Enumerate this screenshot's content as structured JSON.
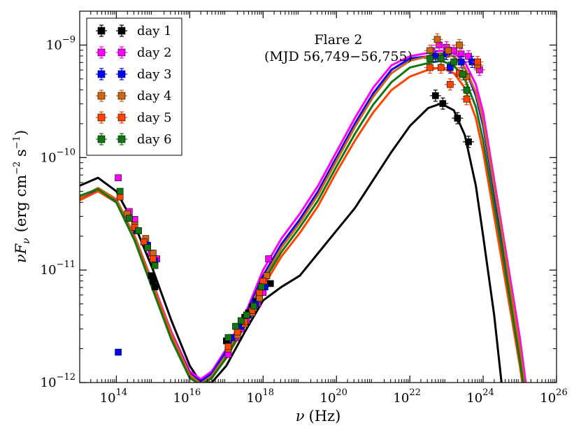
{
  "chart_data": {
    "type": "scatter",
    "annotation": {
      "line1": "Flare 2",
      "line2": "(MJD 56,749−56,755)"
    },
    "xlabel": {
      "main": "ν",
      "unit": "(Hz)"
    },
    "ylabel": {
      "prefix": "νF",
      "sub": "ν",
      "unit_pre": "(erg cm",
      "exp1": "−2",
      "unit_mid": " s",
      "exp2": "−1",
      "unit_post": ")"
    },
    "x_scale": "log",
    "y_scale": "log",
    "xlim": [
      10000000000000.0,
      1e+26
    ],
    "ylim": [
      1e-12,
      2e-09
    ],
    "grid": false,
    "legend_placement": "top-left",
    "x_ticks": [
      {
        "value": 100000000000000.0,
        "base": "10",
        "exp": "14"
      },
      {
        "value": 1e+16,
        "base": "10",
        "exp": "16"
      },
      {
        "value": 1e+18,
        "base": "10",
        "exp": "18"
      },
      {
        "value": 1e+20,
        "base": "10",
        "exp": "20"
      },
      {
        "value": 1e+22,
        "base": "10",
        "exp": "22"
      },
      {
        "value": 1e+24,
        "base": "10",
        "exp": "24"
      },
      {
        "value": 1e+26,
        "base": "10",
        "exp": "26"
      }
    ],
    "y_ticks": [
      {
        "value": 1e-12,
        "base": "10",
        "exp": "−12"
      },
      {
        "value": 1e-11,
        "base": "10",
        "exp": "−11"
      },
      {
        "value": 1e-10,
        "base": "10",
        "exp": "−10"
      },
      {
        "value": 1e-09,
        "base": "10",
        "exp": "−9"
      }
    ],
    "series": [
      {
        "name": "day 1",
        "color": "#000000",
        "model": [
          [
            13,
            -10.25
          ],
          [
            13.5,
            -10.18
          ],
          [
            14,
            -10.3
          ],
          [
            14.5,
            -10.6
          ],
          [
            15,
            -11.0
          ],
          [
            15.5,
            -11.45
          ],
          [
            16,
            -11.85
          ],
          [
            16.3,
            -12.0
          ],
          [
            16.6,
            -12.0
          ],
          [
            17,
            -11.85
          ],
          [
            17.5,
            -11.55
          ],
          [
            18,
            -11.27
          ],
          [
            18.5,
            -11.15
          ],
          [
            19,
            -11.05
          ],
          [
            19.5,
            -10.85
          ],
          [
            20,
            -10.65
          ],
          [
            20.5,
            -10.45
          ],
          [
            21,
            -10.2
          ],
          [
            21.5,
            -9.95
          ],
          [
            22,
            -9.72
          ],
          [
            22.5,
            -9.56
          ],
          [
            22.85,
            -9.52
          ],
          [
            23.2,
            -9.58
          ],
          [
            23.5,
            -9.8
          ],
          [
            23.8,
            -10.25
          ],
          [
            24,
            -10.7
          ],
          [
            24.3,
            -11.4
          ],
          [
            24.6,
            -12.3
          ]
        ],
        "points": [
          [
            14.95,
            -11.05
          ],
          [
            15.0,
            -11.1
          ],
          [
            15.05,
            -11.15
          ],
          [
            17.0,
            -11.63
          ],
          [
            17.3,
            -11.52
          ],
          [
            17.4,
            -11.48
          ],
          [
            17.5,
            -11.42
          ],
          [
            17.6,
            -11.38
          ],
          [
            17.7,
            -11.33
          ],
          [
            17.8,
            -11.28
          ],
          [
            17.9,
            -11.22
          ],
          [
            18.2,
            -11.12
          ],
          [
            22.7,
            -9.45
          ],
          [
            22.9,
            -9.52
          ],
          [
            23.3,
            -9.65
          ],
          [
            23.6,
            -9.86
          ]
        ]
      },
      {
        "name": "day 2",
        "color": "#ff00ff",
        "model": [
          [
            13,
            -10.38
          ],
          [
            13.5,
            -10.28
          ],
          [
            14,
            -10.38
          ],
          [
            14.5,
            -10.7
          ],
          [
            15,
            -11.12
          ],
          [
            15.5,
            -11.55
          ],
          [
            16,
            -11.9
          ],
          [
            16.3,
            -11.97
          ],
          [
            16.6,
            -11.9
          ],
          [
            17,
            -11.7
          ],
          [
            17.5,
            -11.4
          ],
          [
            18,
            -11.0
          ],
          [
            18.5,
            -10.72
          ],
          [
            19,
            -10.5
          ],
          [
            19.5,
            -10.25
          ],
          [
            20,
            -9.95
          ],
          [
            20.5,
            -9.65
          ],
          [
            21,
            -9.38
          ],
          [
            21.5,
            -9.18
          ],
          [
            22,
            -9.1
          ],
          [
            22.5,
            -9.07
          ],
          [
            22.85,
            -9.05
          ],
          [
            23.2,
            -9.07
          ],
          [
            23.5,
            -9.15
          ],
          [
            23.8,
            -9.35
          ],
          [
            24,
            -9.6
          ],
          [
            24.5,
            -10.6
          ],
          [
            25,
            -11.6
          ],
          [
            25.2,
            -12.1
          ]
        ],
        "points": [
          [
            14.05,
            -10.18
          ],
          [
            14.35,
            -10.48
          ],
          [
            14.5,
            -10.55
          ],
          [
            14.6,
            -10.65
          ],
          [
            14.75,
            -10.75
          ],
          [
            14.95,
            -10.85
          ],
          [
            15.1,
            -10.9
          ],
          [
            17.05,
            -11.75
          ],
          [
            17.25,
            -11.6
          ],
          [
            17.4,
            -11.52
          ],
          [
            17.55,
            -11.45
          ],
          [
            17.7,
            -11.38
          ],
          [
            17.85,
            -11.3
          ],
          [
            18.0,
            -11.2
          ],
          [
            18.15,
            -10.9
          ],
          [
            22.6,
            -9.05
          ],
          [
            22.8,
            -9.0
          ],
          [
            23.0,
            -9.02
          ],
          [
            23.2,
            -9.05
          ],
          [
            23.4,
            -9.08
          ],
          [
            23.6,
            -9.1
          ],
          [
            23.9,
            -9.22
          ]
        ]
      },
      {
        "name": "day 3",
        "color": "#0000ff",
        "model": [
          [
            13,
            -10.37
          ],
          [
            13.5,
            -10.28
          ],
          [
            14,
            -10.38
          ],
          [
            14.5,
            -10.7
          ],
          [
            15,
            -11.13
          ],
          [
            15.5,
            -11.57
          ],
          [
            16,
            -11.92
          ],
          [
            16.3,
            -11.99
          ],
          [
            16.6,
            -11.92
          ],
          [
            17,
            -11.72
          ],
          [
            17.5,
            -11.42
          ],
          [
            18,
            -11.05
          ],
          [
            18.5,
            -10.77
          ],
          [
            19,
            -10.55
          ],
          [
            19.5,
            -10.3
          ],
          [
            20,
            -10.0
          ],
          [
            20.5,
            -9.7
          ],
          [
            21,
            -9.43
          ],
          [
            21.5,
            -9.22
          ],
          [
            22,
            -9.12
          ],
          [
            22.5,
            -9.1
          ],
          [
            22.85,
            -9.08
          ],
          [
            23.2,
            -9.1
          ],
          [
            23.5,
            -9.2
          ],
          [
            23.8,
            -9.45
          ],
          [
            24,
            -9.72
          ],
          [
            24.5,
            -10.7
          ],
          [
            25,
            -11.75
          ],
          [
            25.2,
            -12.2
          ]
        ],
        "points": [
          [
            14.05,
            -11.73
          ],
          [
            14.55,
            -10.65
          ],
          [
            14.85,
            -10.78
          ],
          [
            15.05,
            -10.92
          ],
          [
            17.15,
            -11.6
          ],
          [
            17.4,
            -11.5
          ],
          [
            17.6,
            -11.4
          ],
          [
            17.8,
            -11.3
          ],
          [
            18.05,
            -11.15
          ],
          [
            22.7,
            -9.1
          ],
          [
            23.0,
            -9.08
          ],
          [
            23.1,
            -9.2
          ],
          [
            23.4,
            -9.15
          ],
          [
            23.7,
            -9.15
          ]
        ]
      },
      {
        "name": "day 4",
        "color": "#cc6611",
        "model": [
          [
            13,
            -10.36
          ],
          [
            13.5,
            -10.27
          ],
          [
            14,
            -10.37
          ],
          [
            14.5,
            -10.7
          ],
          [
            15,
            -11.13
          ],
          [
            15.5,
            -11.57
          ],
          [
            16,
            -11.93
          ],
          [
            16.3,
            -12.01
          ],
          [
            16.6,
            -11.94
          ],
          [
            17,
            -11.75
          ],
          [
            17.5,
            -11.45
          ],
          [
            18,
            -11.08
          ],
          [
            18.5,
            -10.8
          ],
          [
            19,
            -10.58
          ],
          [
            19.5,
            -10.33
          ],
          [
            20,
            -10.03
          ],
          [
            20.5,
            -9.73
          ],
          [
            21,
            -9.46
          ],
          [
            21.5,
            -9.25
          ],
          [
            22,
            -9.14
          ],
          [
            22.5,
            -9.1
          ],
          [
            22.85,
            -9.08
          ],
          [
            23.2,
            -9.1
          ],
          [
            23.5,
            -9.2
          ],
          [
            23.8,
            -9.42
          ],
          [
            24,
            -9.68
          ],
          [
            24.5,
            -10.65
          ],
          [
            25,
            -11.7
          ],
          [
            25.2,
            -12.2
          ]
        ],
        "points": [
          [
            14.1,
            -10.35
          ],
          [
            14.3,
            -10.5
          ],
          [
            14.5,
            -10.6
          ],
          [
            14.8,
            -10.72
          ],
          [
            15.0,
            -10.85
          ],
          [
            17.05,
            -11.7
          ],
          [
            17.3,
            -11.58
          ],
          [
            17.5,
            -11.48
          ],
          [
            17.7,
            -11.38
          ],
          [
            17.9,
            -11.25
          ],
          [
            18.1,
            -11.05
          ],
          [
            22.55,
            -9.05
          ],
          [
            22.75,
            -8.95
          ],
          [
            23.05,
            -9.05
          ],
          [
            23.35,
            -9.0
          ],
          [
            23.55,
            -9.28
          ],
          [
            23.85,
            -9.18
          ]
        ]
      },
      {
        "name": "day 5",
        "color": "#ff4400",
        "model": [
          [
            13,
            -10.38
          ],
          [
            13.5,
            -10.3
          ],
          [
            14,
            -10.4
          ],
          [
            14.5,
            -10.73
          ],
          [
            15,
            -11.16
          ],
          [
            15.5,
            -11.6
          ],
          [
            16,
            -11.95
          ],
          [
            16.3,
            -12.03
          ],
          [
            16.6,
            -11.96
          ],
          [
            17,
            -11.78
          ],
          [
            17.5,
            -11.5
          ],
          [
            18,
            -11.15
          ],
          [
            18.5,
            -10.88
          ],
          [
            19,
            -10.67
          ],
          [
            19.5,
            -10.43
          ],
          [
            20,
            -10.13
          ],
          [
            20.5,
            -9.85
          ],
          [
            21,
            -9.6
          ],
          [
            21.5,
            -9.4
          ],
          [
            22,
            -9.28
          ],
          [
            22.5,
            -9.22
          ],
          [
            22.85,
            -9.2
          ],
          [
            23.2,
            -9.25
          ],
          [
            23.5,
            -9.38
          ],
          [
            23.8,
            -9.65
          ],
          [
            24,
            -9.95
          ],
          [
            24.5,
            -10.9
          ],
          [
            25,
            -11.85
          ],
          [
            25.2,
            -12.3
          ]
        ],
        "points": [
          [
            14.1,
            -10.35
          ],
          [
            14.5,
            -10.62
          ],
          [
            14.75,
            -10.75
          ],
          [
            15.0,
            -10.9
          ],
          [
            17.05,
            -11.68
          ],
          [
            17.3,
            -11.55
          ],
          [
            17.5,
            -11.46
          ],
          [
            17.7,
            -11.36
          ],
          [
            17.9,
            -11.2
          ],
          [
            18.0,
            -11.1
          ],
          [
            22.55,
            -9.2
          ],
          [
            22.85,
            -9.2
          ],
          [
            23.1,
            -9.35
          ],
          [
            23.35,
            -9.25
          ],
          [
            23.55,
            -9.48
          ],
          [
            23.85,
            -9.15
          ]
        ]
      },
      {
        "name": "day 6",
        "color": "#117711",
        "model": [
          [
            13,
            -10.34
          ],
          [
            13.5,
            -10.28
          ],
          [
            14,
            -10.4
          ],
          [
            14.5,
            -10.74
          ],
          [
            15,
            -11.18
          ],
          [
            15.5,
            -11.62
          ],
          [
            16,
            -11.96
          ],
          [
            16.3,
            -12.02
          ],
          [
            16.6,
            -11.96
          ],
          [
            17,
            -11.78
          ],
          [
            17.5,
            -11.48
          ],
          [
            18,
            -11.11
          ],
          [
            18.5,
            -10.84
          ],
          [
            19,
            -10.62
          ],
          [
            19.5,
            -10.38
          ],
          [
            20,
            -10.08
          ],
          [
            20.5,
            -9.79
          ],
          [
            21,
            -9.53
          ],
          [
            21.5,
            -9.33
          ],
          [
            22,
            -9.2
          ],
          [
            22.5,
            -9.16
          ],
          [
            22.85,
            -9.14
          ],
          [
            23.2,
            -9.18
          ],
          [
            23.5,
            -9.3
          ],
          [
            23.8,
            -9.55
          ],
          [
            24,
            -9.85
          ],
          [
            24.5,
            -10.8
          ],
          [
            25,
            -11.8
          ],
          [
            25.2,
            -12.25
          ]
        ],
        "points": [
          [
            14.1,
            -10.3
          ],
          [
            14.35,
            -10.54
          ],
          [
            14.6,
            -10.65
          ],
          [
            14.85,
            -10.8
          ],
          [
            15.05,
            -10.96
          ],
          [
            17.05,
            -11.6
          ],
          [
            17.25,
            -11.5
          ],
          [
            17.4,
            -11.45
          ],
          [
            17.55,
            -11.4
          ],
          [
            17.75,
            -11.32
          ],
          [
            17.95,
            -11.15
          ],
          [
            22.55,
            -9.12
          ],
          [
            22.85,
            -9.12
          ],
          [
            23.2,
            -9.15
          ],
          [
            23.45,
            -9.26
          ],
          [
            23.55,
            -9.4
          ]
        ]
      }
    ]
  }
}
